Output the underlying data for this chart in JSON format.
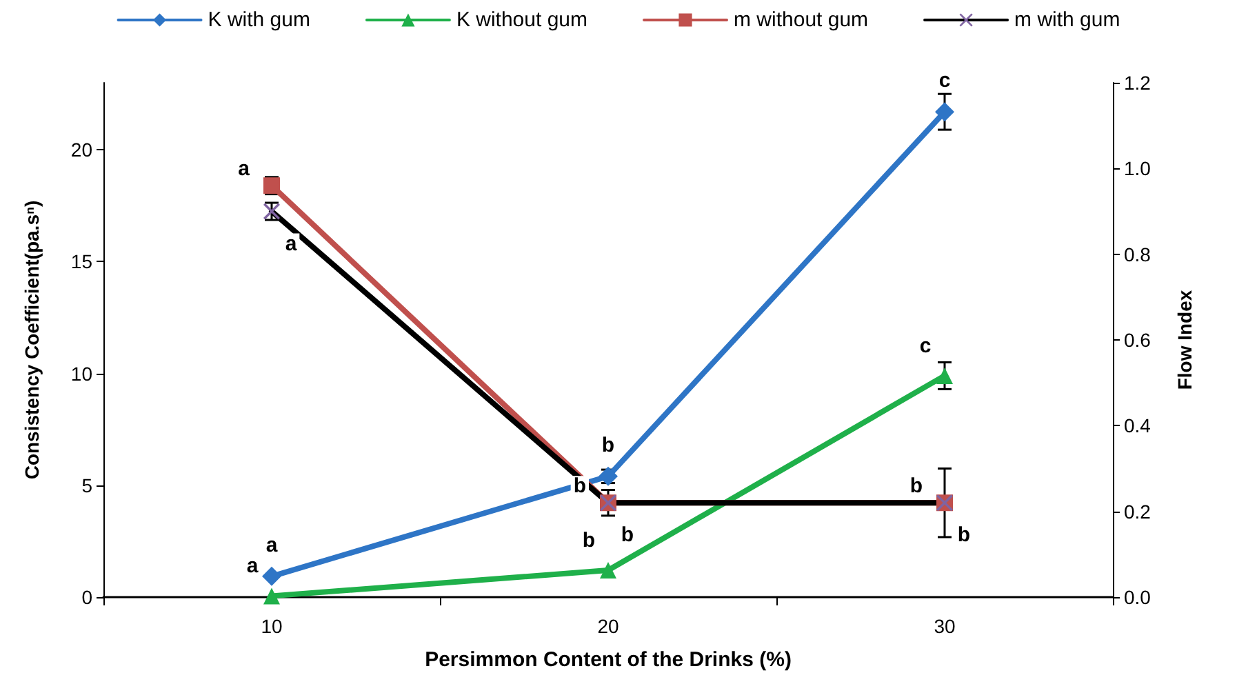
{
  "chart_data": {
    "type": "line",
    "xlabel": "Persimmon Content of the Drinks (%)",
    "ylabel": "Consistency Coefficient(pa.sⁿ)",
    "y2label": "Flow Index",
    "categories": [
      "10",
      "20",
      "30"
    ],
    "series": [
      {
        "name": "K with gum",
        "color": "#2e75c6",
        "marker": "diamond",
        "values": [
          0.93,
          5.4,
          21.7
        ],
        "errors": [
          null,
          0.3,
          0.8
        ],
        "value_labels": [
          "a",
          "b",
          "c"
        ]
      },
      {
        "name": "K without gum",
        "color": "#1fb04a",
        "marker": "triangle",
        "values": [
          0.05,
          1.2,
          9.9
        ],
        "errors": [
          null,
          null,
          0.6
        ],
        "value_labels": [
          "a",
          "b",
          "c"
        ]
      },
      {
        "name": "m without gum",
        "color": "#c0504d",
        "marker": "square",
        "axis": "y2",
        "values": [
          0.96,
          0.22,
          0.22
        ],
        "errors": [
          0.02,
          0.03,
          0.08
        ],
        "value_labels": [
          "a",
          "b",
          "b"
        ]
      },
      {
        "name": "m with gum",
        "color": "#000000",
        "marker": "cross",
        "axis": "y2",
        "values": [
          0.9,
          0.22,
          0.22
        ],
        "errors": [
          0.02,
          null,
          null
        ],
        "value_labels": [
          "a",
          "b",
          "b"
        ]
      }
    ],
    "ylim": [
      0,
      23
    ],
    "yticks": [
      0,
      5,
      10,
      15,
      20
    ],
    "y2lim": [
      0,
      1.2
    ],
    "y2ticks": [
      {
        "value": 0,
        "label": "0.0"
      },
      {
        "value": 0.2,
        "label": "0.2"
      },
      {
        "value": 0.4,
        "label": "0.4"
      },
      {
        "value": 0.6,
        "label": "0.6"
      },
      {
        "value": 0.8,
        "label": "0.8"
      },
      {
        "value": 1,
        "label": "1.0"
      },
      {
        "value": 1.2,
        "label": "1.2"
      }
    ],
    "legend": "top",
    "grid": false,
    "line_style": "solid"
  }
}
